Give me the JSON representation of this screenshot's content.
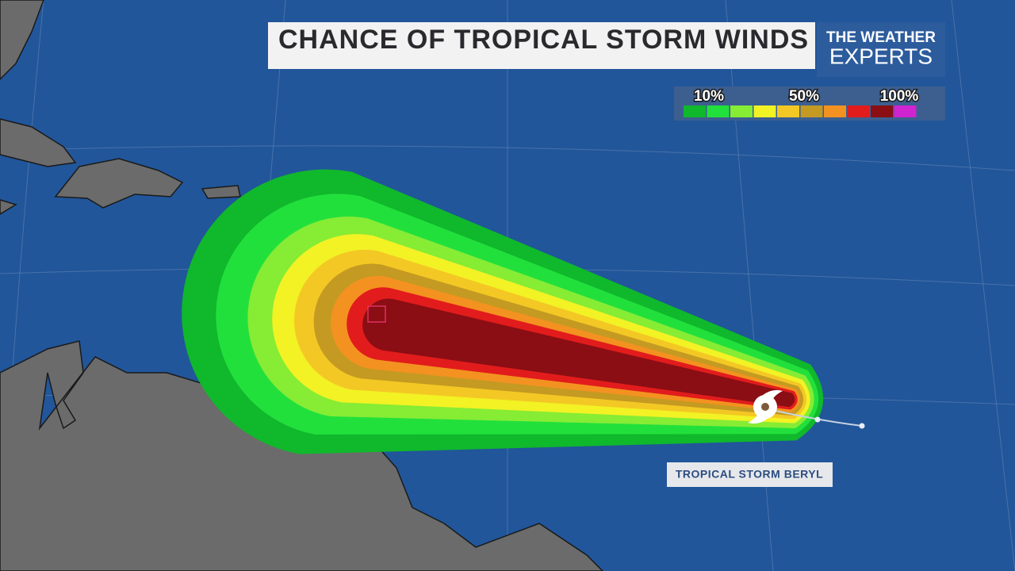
{
  "header": {
    "title": "CHANCE OF TROPICAL STORM WINDS",
    "logo": [
      "THE WEATHER",
      "EXPERTS"
    ]
  },
  "legend": {
    "labels": [
      "10%",
      "50%",
      "100%"
    ],
    "colors": [
      "#10b82c",
      "#22e03c",
      "#86ec34",
      "#f2f224",
      "#f4c824",
      "#c49a22",
      "#f39220",
      "#e21c1c",
      "#8a0e14",
      "#d024d0"
    ]
  },
  "storm": {
    "label": "TROPICAL STORM BERYL"
  }
}
